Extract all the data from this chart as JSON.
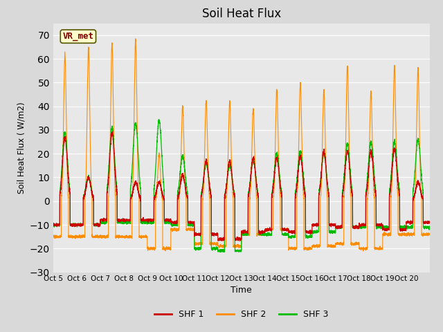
{
  "title": "Soil Heat Flux",
  "ylabel": "Soil Heat Flux ( W/m2)",
  "xlabel": "Time",
  "ylim": [
    -30,
    75
  ],
  "yticks": [
    -30,
    -20,
    -10,
    0,
    10,
    20,
    30,
    40,
    50,
    60,
    70
  ],
  "colors": {
    "SHF 1": "#cc0000",
    "SHF 2": "#ff8c00",
    "SHF 3": "#00bb00"
  },
  "legend_label": "VR_met",
  "fig_bg_color": "#d9d9d9",
  "plot_bg_color": "#e8e8e8",
  "grid_color": "#ffffff",
  "n_days": 16,
  "day_start": 5,
  "points_per_day": 288,
  "shf2_peaks": [
    62,
    65,
    67,
    68,
    20,
    40,
    42,
    42,
    39,
    47,
    50,
    47,
    57,
    46,
    57,
    56
  ],
  "shf1_peaks": [
    27,
    10,
    29,
    8,
    8,
    11,
    17,
    17,
    18,
    18,
    19,
    21,
    21,
    21,
    22,
    8
  ],
  "shf3_peaks": [
    29,
    10,
    31,
    33,
    34,
    19,
    16,
    15,
    17,
    20,
    21,
    20,
    24,
    25,
    25,
    26
  ],
  "shf2_troughs": [
    -15,
    -15,
    -15,
    -15,
    -20,
    -12,
    -18,
    -19,
    -14,
    -12,
    -20,
    -19,
    -18,
    -20,
    -14,
    -14
  ],
  "shf1_troughs": [
    -10,
    -10,
    -8,
    -8,
    -8,
    -9,
    -14,
    -16,
    -13,
    -12,
    -13,
    -10,
    -11,
    -10,
    -12,
    -9
  ],
  "shf3_troughs": [
    -10,
    -10,
    -9,
    -9,
    -9,
    -10,
    -20,
    -21,
    -14,
    -14,
    -15,
    -13,
    -11,
    -11,
    -11,
    -11
  ]
}
